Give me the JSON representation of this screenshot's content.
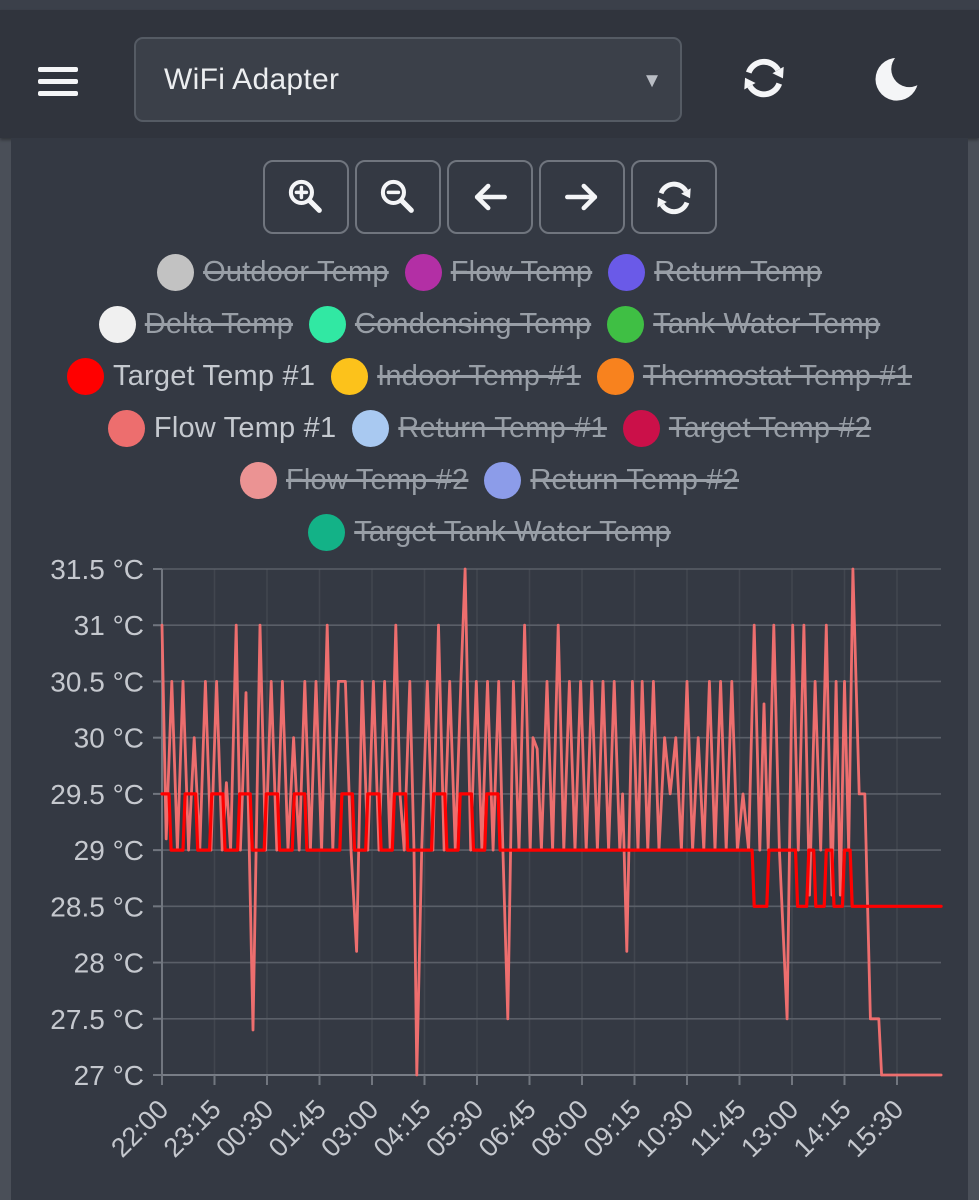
{
  "header": {
    "device_selector": {
      "value": "WiFi Adapter",
      "caret_icon": "chevron-down-icon"
    },
    "menu_icon": "hamburger-menu-icon",
    "refresh_icon": "refresh-sync-icon",
    "dark_mode_icon": "moon-crescent-icon"
  },
  "toolbar": {
    "buttons": [
      {
        "name": "zoom-in",
        "icon": "zoom-in-icon"
      },
      {
        "name": "zoom-out",
        "icon": "zoom-out-icon"
      },
      {
        "name": "pan-left",
        "icon": "arrow-left-icon"
      },
      {
        "name": "pan-right",
        "icon": "arrow-right-icon"
      },
      {
        "name": "refresh",
        "icon": "refresh-sync-icon"
      }
    ]
  },
  "legend": {
    "rows": [
      [
        {
          "label": "Outdoor Temp",
          "color": "#c2c2c2",
          "enabled": false
        },
        {
          "label": "Flow Temp",
          "color": "#b32fa5",
          "enabled": false
        },
        {
          "label": "Return Temp",
          "color": "#6a5ae8",
          "enabled": false
        }
      ],
      [
        {
          "label": "Delta Temp",
          "color": "#f0f0f0",
          "enabled": false
        },
        {
          "label": "Condensing Temp",
          "color": "#31e8a3",
          "enabled": false
        },
        {
          "label": "Tank Water Temp",
          "color": "#3fbf44",
          "enabled": false
        }
      ],
      [
        {
          "label": "Target Temp #1",
          "color": "#ff0000",
          "enabled": true
        },
        {
          "label": "Indoor Temp #1",
          "color": "#fcc21b",
          "enabled": false
        },
        {
          "label": "Thermostat Temp #1",
          "color": "#f8821e",
          "enabled": false
        }
      ],
      [
        {
          "label": "Flow Temp #1",
          "color": "#ed6e6e",
          "enabled": true
        },
        {
          "label": "Return Temp #1",
          "color": "#a9c9f1",
          "enabled": false
        },
        {
          "label": "Target Temp #2",
          "color": "#cb1049",
          "enabled": false
        }
      ],
      [
        {
          "label": "Flow Temp #2",
          "color": "#eb9393",
          "enabled": false
        },
        {
          "label": "Return Temp #2",
          "color": "#8c9ce9",
          "enabled": false
        }
      ],
      [
        {
          "label": "Target Tank Water Temp",
          "color": "#13b287",
          "enabled": false
        }
      ]
    ]
  },
  "chart_data": {
    "type": "line",
    "title": "",
    "xlabel": "",
    "ylabel": "",
    "grid": true,
    "legend_position": "top",
    "ylim": [
      27,
      31.5
    ],
    "y_ticks": [
      {
        "label": "31.5 °C",
        "value": 31.5
      },
      {
        "label": "31 °C",
        "value": 31
      },
      {
        "label": "30.5 °C",
        "value": 30.5
      },
      {
        "label": "30 °C",
        "value": 30
      },
      {
        "label": "29.5 °C",
        "value": 29.5
      },
      {
        "label": "29 °C",
        "value": 29
      },
      {
        "label": "28.5 °C",
        "value": 28.5
      },
      {
        "label": "28 °C",
        "value": 28
      },
      {
        "label": "27.5 °C",
        "value": 27.5
      },
      {
        "label": "27 °C",
        "value": 27
      }
    ],
    "x_ticks": [
      {
        "label": "22:00",
        "t": 0
      },
      {
        "label": "23:15",
        "t": 75
      },
      {
        "label": "00:30",
        "t": 150
      },
      {
        "label": "01:45",
        "t": 225
      },
      {
        "label": "03:00",
        "t": 300
      },
      {
        "label": "04:15",
        "t": 375
      },
      {
        "label": "05:30",
        "t": 450
      },
      {
        "label": "06:45",
        "t": 525
      },
      {
        "label": "08:00",
        "t": 600
      },
      {
        "label": "09:15",
        "t": 675
      },
      {
        "label": "10:30",
        "t": 750
      },
      {
        "label": "11:45",
        "t": 825
      },
      {
        "label": "13:00",
        "t": 900
      },
      {
        "label": "14:15",
        "t": 975
      },
      {
        "label": "15:30",
        "t": 1050
      }
    ],
    "x_range_minutes": [
      0,
      1113
    ],
    "series": [
      {
        "name": "Flow Temp #1",
        "color": "#ed6e6e",
        "width": 2.8,
        "points": [
          [
            0,
            31
          ],
          [
            6,
            29.1
          ],
          [
            14,
            30.5
          ],
          [
            22,
            29
          ],
          [
            30,
            30.5
          ],
          [
            38,
            29
          ],
          [
            46,
            30
          ],
          [
            54,
            29
          ],
          [
            62,
            30.5
          ],
          [
            70,
            29
          ],
          [
            78,
            30.5
          ],
          [
            86,
            29
          ],
          [
            92,
            29.6
          ],
          [
            98,
            29
          ],
          [
            106,
            31
          ],
          [
            112,
            29
          ],
          [
            120,
            30.4
          ],
          [
            130,
            27.4
          ],
          [
            140,
            31
          ],
          [
            148,
            29
          ],
          [
            156,
            30.5
          ],
          [
            164,
            29
          ],
          [
            172,
            30.5
          ],
          [
            180,
            29
          ],
          [
            188,
            30
          ],
          [
            196,
            29
          ],
          [
            204,
            30.5
          ],
          [
            212,
            29
          ],
          [
            220,
            30.5
          ],
          [
            228,
            29
          ],
          [
            236,
            31
          ],
          [
            244,
            29
          ],
          [
            252,
            30.5
          ],
          [
            262,
            30.5
          ],
          [
            270,
            29
          ],
          [
            278,
            28.1
          ],
          [
            286,
            30.5
          ],
          [
            294,
            29
          ],
          [
            302,
            30.5
          ],
          [
            310,
            29
          ],
          [
            318,
            30.5
          ],
          [
            326,
            29
          ],
          [
            334,
            31
          ],
          [
            340,
            29.5
          ],
          [
            346,
            29
          ],
          [
            354,
            30.5
          ],
          [
            360,
            29
          ],
          [
            364,
            27
          ],
          [
            371,
            29
          ],
          [
            379,
            30.5
          ],
          [
            387,
            29
          ],
          [
            395,
            31
          ],
          [
            403,
            29
          ],
          [
            411,
            30.5
          ],
          [
            419,
            29
          ],
          [
            427,
            30.5
          ],
          [
            433,
            31.5
          ],
          [
            441,
            29
          ],
          [
            449,
            30.5
          ],
          [
            457,
            29
          ],
          [
            465,
            30.5
          ],
          [
            473,
            29
          ],
          [
            481,
            30.5
          ],
          [
            487,
            29
          ],
          [
            494,
            27.5
          ],
          [
            502,
            30.5
          ],
          [
            510,
            29
          ],
          [
            518,
            31
          ],
          [
            526,
            29
          ],
          [
            530,
            30
          ],
          [
            536,
            29.9
          ],
          [
            542,
            29
          ],
          [
            550,
            30.5
          ],
          [
            558,
            29
          ],
          [
            566,
            31
          ],
          [
            574,
            29
          ],
          [
            582,
            30.5
          ],
          [
            590,
            29
          ],
          [
            598,
            30.5
          ],
          [
            606,
            29
          ],
          [
            614,
            30.5
          ],
          [
            622,
            29
          ],
          [
            630,
            30.5
          ],
          [
            638,
            29
          ],
          [
            646,
            30.5
          ],
          [
            654,
            29
          ],
          [
            658,
            29.5
          ],
          [
            664,
            28.1
          ],
          [
            672,
            30.5
          ],
          [
            680,
            29
          ],
          [
            686,
            30.5
          ],
          [
            694,
            29
          ],
          [
            702,
            30.5
          ],
          [
            710,
            29
          ],
          [
            718,
            30
          ],
          [
            726,
            29.5
          ],
          [
            734,
            30
          ],
          [
            742,
            29
          ],
          [
            750,
            30.5
          ],
          [
            758,
            29
          ],
          [
            766,
            30
          ],
          [
            774,
            29
          ],
          [
            782,
            30.5
          ],
          [
            790,
            29
          ],
          [
            798,
            30.5
          ],
          [
            806,
            29
          ],
          [
            814,
            30.5
          ],
          [
            822,
            29
          ],
          [
            830,
            29.5
          ],
          [
            838,
            29
          ],
          [
            846,
            31
          ],
          [
            854,
            29
          ],
          [
            860,
            30.3
          ],
          [
            866,
            29
          ],
          [
            874,
            31
          ],
          [
            882,
            29
          ],
          [
            893,
            27.5
          ],
          [
            901,
            31
          ],
          [
            909,
            29
          ],
          [
            917,
            31
          ],
          [
            925,
            28.6
          ],
          [
            933,
            30.5
          ],
          [
            941,
            29
          ],
          [
            949,
            31
          ],
          [
            957,
            28.6
          ],
          [
            963,
            30.5
          ],
          [
            969,
            28.6
          ],
          [
            975,
            30.5
          ],
          [
            981,
            29
          ],
          [
            987,
            31.5
          ],
          [
            996,
            29.5
          ],
          [
            1004,
            29.5
          ],
          [
            1008,
            28.5
          ],
          [
            1012,
            27.5
          ],
          [
            1024,
            27.5
          ],
          [
            1028,
            27
          ],
          [
            1113,
            27
          ]
        ]
      },
      {
        "name": "Target Temp #1",
        "color": "#ff0000",
        "width": 3.2,
        "points": [
          [
            0,
            29.5
          ],
          [
            10,
            29.5
          ],
          [
            13,
            29
          ],
          [
            30,
            29
          ],
          [
            33,
            29.5
          ],
          [
            48,
            29.5
          ],
          [
            51,
            29
          ],
          [
            68,
            29
          ],
          [
            71,
            29.5
          ],
          [
            87,
            29.5
          ],
          [
            90,
            29
          ],
          [
            108,
            29
          ],
          [
            111,
            29.5
          ],
          [
            126,
            29.5
          ],
          [
            129,
            29
          ],
          [
            146,
            29
          ],
          [
            149,
            29.5
          ],
          [
            165,
            29.5
          ],
          [
            168,
            29
          ],
          [
            186,
            29
          ],
          [
            189,
            29.5
          ],
          [
            204,
            29.5
          ],
          [
            207,
            29
          ],
          [
            254,
            29
          ],
          [
            257,
            29.5
          ],
          [
            272,
            29.5
          ],
          [
            275,
            29
          ],
          [
            291,
            29
          ],
          [
            294,
            29.5
          ],
          [
            310,
            29.5
          ],
          [
            313,
            29
          ],
          [
            329,
            29
          ],
          [
            332,
            29.5
          ],
          [
            348,
            29.5
          ],
          [
            351,
            29
          ],
          [
            385,
            29
          ],
          [
            388,
            29.5
          ],
          [
            404,
            29.5
          ],
          [
            407,
            29
          ],
          [
            423,
            29
          ],
          [
            426,
            29.5
          ],
          [
            442,
            29.5
          ],
          [
            445,
            29
          ],
          [
            461,
            29
          ],
          [
            464,
            29.5
          ],
          [
            480,
            29.5
          ],
          [
            483,
            29
          ],
          [
            545,
            29
          ],
          [
            843,
            29
          ],
          [
            846,
            28.5
          ],
          [
            864,
            28.5
          ],
          [
            867,
            29
          ],
          [
            905,
            29
          ],
          [
            908,
            28.5
          ],
          [
            921,
            28.5
          ],
          [
            924,
            29
          ],
          [
            931,
            29
          ],
          [
            934,
            28.5
          ],
          [
            946,
            28.5
          ],
          [
            949,
            29
          ],
          [
            957,
            29
          ],
          [
            960,
            28.5
          ],
          [
            972,
            28.5
          ],
          [
            975,
            29
          ],
          [
            983,
            29
          ],
          [
            986,
            28.5
          ],
          [
            1113,
            28.5
          ]
        ]
      }
    ]
  }
}
